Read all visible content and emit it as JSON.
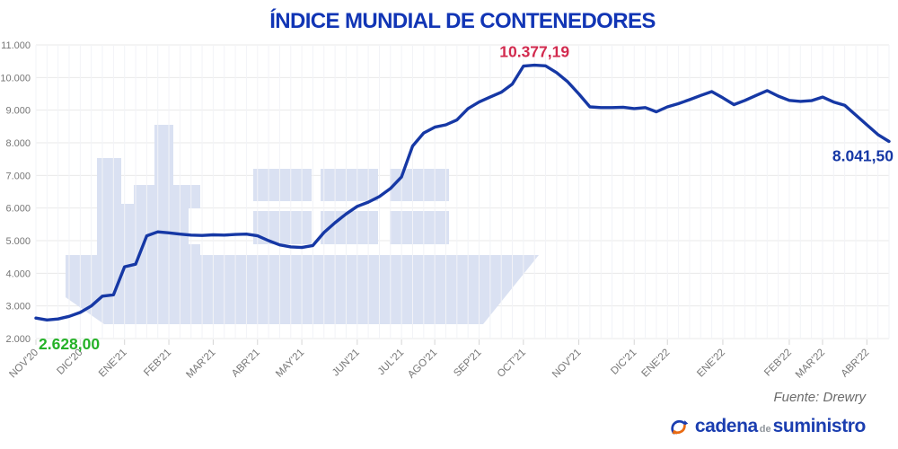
{
  "page": {
    "title": "ÍNDICE MUNDIAL DE CONTENEDORES",
    "source": "Fuente: Drewry"
  },
  "logo": {
    "icon": "sync-arrows-icon",
    "word1": "cadena",
    "word2": "de",
    "word3": "suministro"
  },
  "colors": {
    "title": "#1135b5",
    "line": "#1638a5",
    "annotation_start": "#25b228",
    "annotation_peak": "#d22a4e",
    "annotation_end": "#1638a5",
    "axis_text": "#767676",
    "grid_major": "#e9e9e9",
    "grid_minor": "#f2f3f7",
    "tick_mark": "#d5d5d5",
    "watermark": "#dae1f2",
    "source_text": "#6b6b6b",
    "logo_blue": "#1b3eb0",
    "logo_gray": "#8f959b",
    "logo_orange": "#e96a12",
    "background": "#ffffff"
  },
  "chart_data": {
    "type": "line",
    "title": "ÍNDICE MUNDIAL DE CONTENEDORES",
    "xlabel": "",
    "ylabel": "",
    "ylim": [
      2000,
      11000
    ],
    "grid": true,
    "legend": "none",
    "y_tick_labels": [
      "11.000",
      "10.000",
      "9.000",
      "8.000",
      "7.000",
      "6.000",
      "5.000",
      "4.000",
      "3.000",
      "2.000"
    ],
    "x_tick_labels": [
      "NOV'20",
      "DIC'20",
      "ENE'21",
      "FEB'21",
      "MAR'21",
      "ABR'21",
      "MAY'21",
      "JUN'21",
      "JUL'21",
      "AGO'21",
      "SEP'21",
      "OCT'21",
      "NOV'21",
      "DIC'21",
      "ENE'22",
      "ENE'22",
      "FEB'22",
      "MAR'22",
      "ABR'22"
    ],
    "x_tick_positions": [
      0,
      4,
      8,
      12,
      16,
      20,
      24,
      29,
      33,
      36,
      40,
      44,
      49,
      54,
      57,
      62,
      68,
      71,
      75
    ],
    "values": [
      2628,
      2570,
      2600,
      2680,
      2800,
      3000,
      3300,
      3340,
      4200,
      4280,
      5150,
      5270,
      5240,
      5200,
      5170,
      5160,
      5180,
      5170,
      5190,
      5200,
      5150,
      5000,
      4870,
      4810,
      4790,
      4850,
      5250,
      5550,
      5820,
      6050,
      6180,
      6350,
      6600,
      6950,
      7900,
      8300,
      8480,
      8550,
      8700,
      9050,
      9250,
      9400,
      9550,
      9800,
      10350,
      10377.19,
      10360,
      10150,
      9870,
      9500,
      9100,
      9080,
      9080,
      9090,
      9050,
      9080,
      8950,
      9100,
      9200,
      9320,
      9450,
      9570,
      9380,
      9170,
      9300,
      9450,
      9600,
      9430,
      9300,
      9270,
      9290,
      9400,
      9250,
      9150,
      8850,
      8550,
      8250,
      8041.5
    ],
    "annotations": [
      {
        "text": "2.628,00",
        "value": 2628.0,
        "at_index": 0,
        "placement": "below-start",
        "color": "#25b228"
      },
      {
        "text": "10.377,19",
        "value": 10377.19,
        "at_index": 45,
        "placement": "above",
        "color": "#d22a4e"
      },
      {
        "text": "8.041,50",
        "value": 8041.5,
        "at_index": 77,
        "placement": "below-end",
        "color": "#1638a5"
      }
    ]
  }
}
